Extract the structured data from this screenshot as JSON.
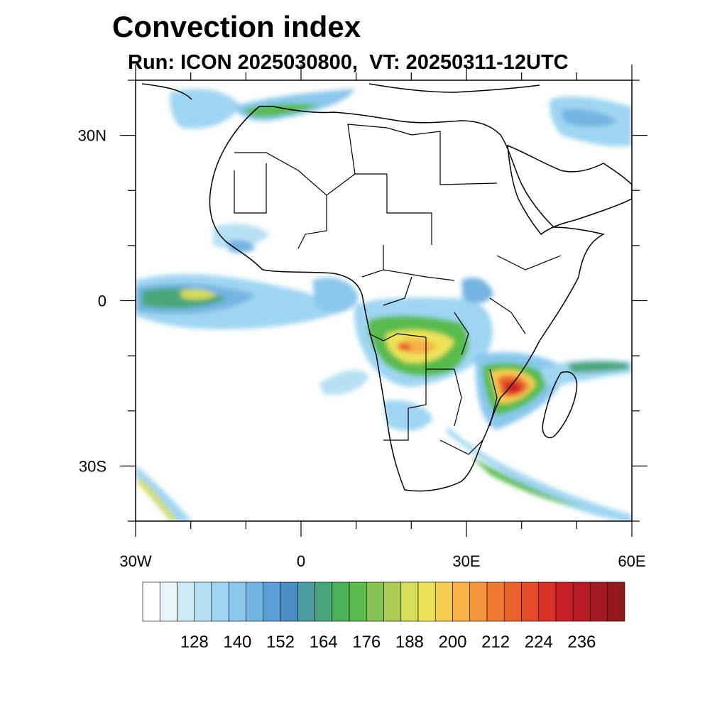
{
  "title": "Convection index",
  "subtitle": "Run: ICON 2025030800,  VT: 20250311-12UTC",
  "map": {
    "lon_range": [
      -30,
      60
    ],
    "lat_range": [
      -40,
      40
    ],
    "x_ticks": [
      {
        "value": -30,
        "label": "30W"
      },
      {
        "value": 0,
        "label": "0"
      },
      {
        "value": 30,
        "label": "30E"
      },
      {
        "value": 60,
        "label": "60E"
      }
    ],
    "y_ticks": [
      {
        "value": 30,
        "label": "30N"
      },
      {
        "value": 0,
        "label": "0"
      },
      {
        "value": -30,
        "label": "30S"
      }
    ]
  },
  "colorbar": {
    "labels": [
      "128",
      "140",
      "152",
      "164",
      "176",
      "188",
      "200",
      "212",
      "224",
      "236"
    ],
    "colors": [
      "#ffffff",
      "#eaf5fb",
      "#d0ebf7",
      "#b7e0f4",
      "#9fd5f2",
      "#89c7ec",
      "#74b4e2",
      "#5d9ed6",
      "#4a8cc4",
      "#4a9ca0",
      "#4aa67a",
      "#4bb25a",
      "#58bb4d",
      "#86c352",
      "#abcd55",
      "#d6dd58",
      "#ede35a",
      "#f6cd52",
      "#f7b146",
      "#f5963c",
      "#f17a33",
      "#eb622c",
      "#e34c28",
      "#d93127",
      "#c91f28",
      "#b81a27",
      "#a51a22",
      "#901a1e"
    ]
  }
}
